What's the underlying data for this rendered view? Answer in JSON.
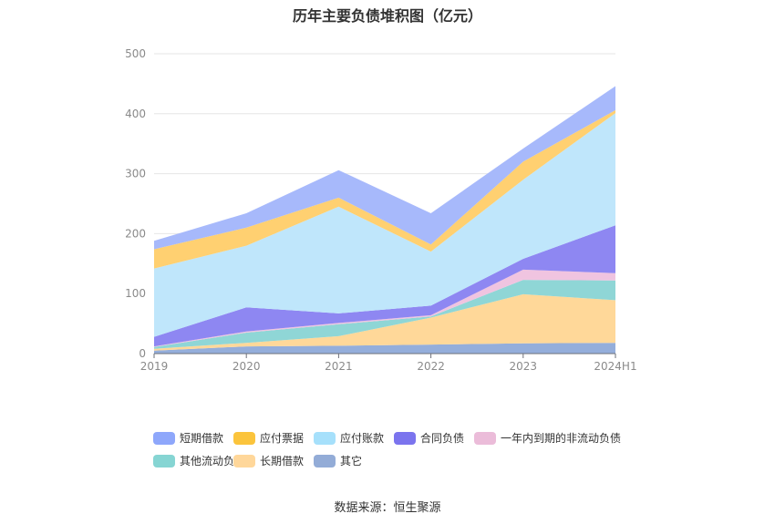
{
  "title": "历年主要负债堆积图（亿元）",
  "source": "数据来源：恒生聚源",
  "chart_data": {
    "type": "area",
    "stacked": true,
    "title": "历年主要负债堆积图（亿元）",
    "categories": [
      "2019",
      "2020",
      "2021",
      "2022",
      "2023",
      "2024H1"
    ],
    "ylim": [
      0,
      500
    ],
    "yticks": [
      0,
      100,
      200,
      300,
      400,
      500
    ],
    "grid": true,
    "legend_position": "bottom",
    "series": [
      {
        "name": "其它",
        "color": "#94aedb",
        "values": [
          5,
          12,
          13,
          15,
          17,
          18
        ]
      },
      {
        "name": "长期借款",
        "color": "#ffd899",
        "values": [
          3,
          6,
          16,
          45,
          82,
          71
        ]
      },
      {
        "name": "其他流动负债",
        "color": "#8fd6d6",
        "values": [
          3,
          17,
          20,
          2,
          24,
          33
        ]
      },
      {
        "name": "一年内到期的非流动负债",
        "color": "#f0c4e0",
        "values": [
          1,
          2,
          2,
          2,
          17,
          12
        ]
      },
      {
        "name": "合同负债",
        "color": "#8e87f2",
        "values": [
          16,
          40,
          16,
          16,
          18,
          80
        ]
      },
      {
        "name": "应付账款",
        "color": "#bfe6fb",
        "values": [
          114,
          103,
          178,
          90,
          132,
          187
        ]
      },
      {
        "name": "应付票据",
        "color": "#ffd071",
        "values": [
          32,
          30,
          15,
          12,
          30,
          5
        ]
      },
      {
        "name": "短期借款",
        "color": "#a7b9fb",
        "values": [
          14,
          24,
          46,
          52,
          22,
          40
        ]
      }
    ],
    "legend": [
      {
        "name": "短期借款",
        "color": "#8ea7fb"
      },
      {
        "name": "应付票据",
        "color": "#fbc43c"
      },
      {
        "name": "应付账款",
        "color": "#a6e0fb"
      },
      {
        "name": "合同负债",
        "color": "#7b74ee"
      },
      {
        "name": "一年内到期的非流动负债",
        "color": "#ebbcd9"
      },
      {
        "name": "其他流动负债",
        "color": "#86d5d3"
      },
      {
        "name": "长期借款",
        "color": "#ffd79a"
      },
      {
        "name": "其它",
        "color": "#93acd7"
      }
    ]
  }
}
